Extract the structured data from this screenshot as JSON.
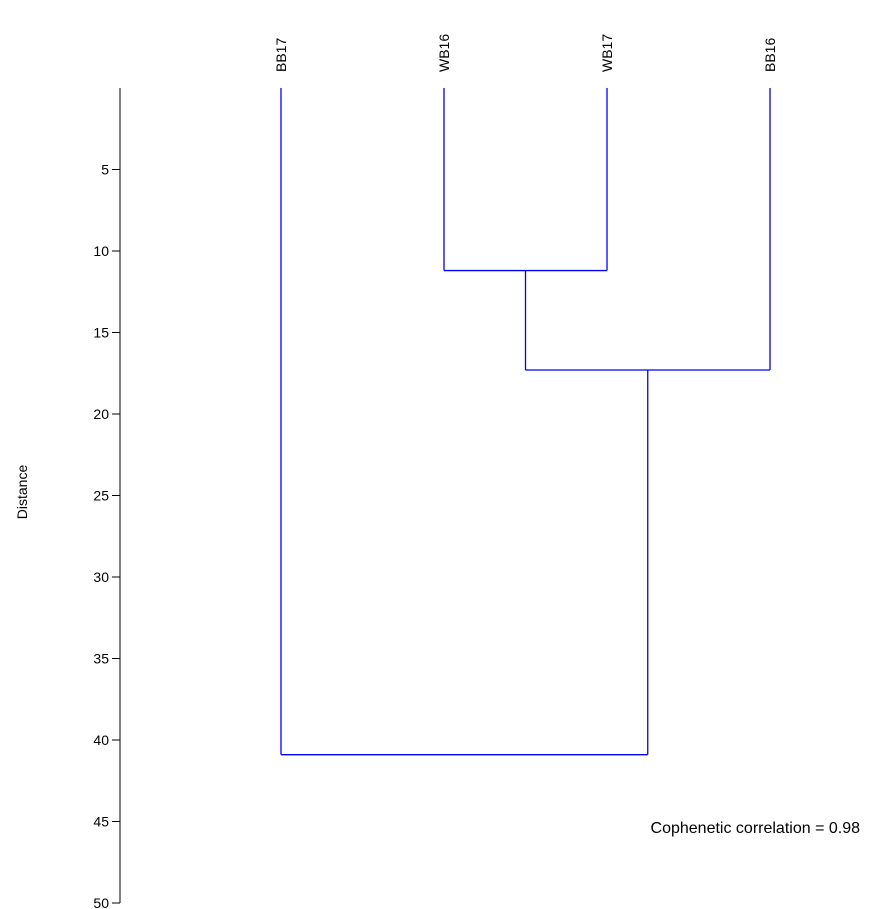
{
  "chart_data": {
    "type": "dendrogram",
    "ylabel": "Distance",
    "ylim": [
      0,
      50
    ],
    "y_inverted": true,
    "yticks": [
      5,
      10,
      15,
      20,
      25,
      30,
      35,
      40,
      45,
      50
    ],
    "leaves": [
      "BB17",
      "WB16",
      "WB17",
      "BB16"
    ],
    "merges": [
      {
        "left": "WB16",
        "right": "WB17",
        "distance": 11.2
      },
      {
        "left": "WB16+WB17",
        "right": "BB16",
        "distance": 17.3
      },
      {
        "left": "BB17",
        "right": "WB16+WB17+BB16",
        "distance": 40.9
      }
    ],
    "annotation": "Cophenetic correlation = 0.98",
    "colors": {
      "branch": "#0000ff",
      "axis": "#000000",
      "text": "#000000"
    }
  }
}
